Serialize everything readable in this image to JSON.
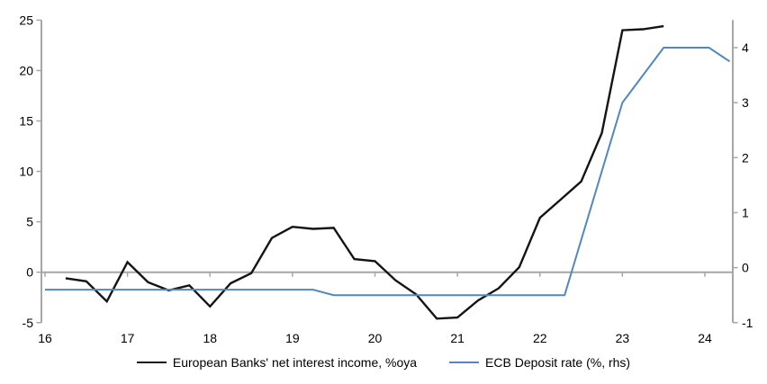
{
  "chart_data": {
    "type": "line",
    "title": "",
    "x_axis": {
      "labels": [
        "16",
        "17",
        "18",
        "19",
        "20",
        "21",
        "22",
        "23",
        "24"
      ],
      "tick_values": [
        16,
        17,
        18,
        19,
        20,
        21,
        22,
        23,
        24
      ],
      "range": [
        15.96,
        24.34
      ],
      "axis_position_left_value": 0
    },
    "y_axis_left": {
      "labels": [
        "25",
        "20",
        "15",
        "10",
        "5",
        "0",
        "-5"
      ],
      "tick_values": [
        25,
        20,
        15,
        10,
        5,
        0,
        -5
      ],
      "range": [
        -5,
        25
      ]
    },
    "y_axis_right": {
      "labels": [
        "4",
        "3",
        "2",
        "1",
        "0",
        "-1"
      ],
      "tick_values": [
        4,
        3,
        2,
        1,
        0,
        -1
      ],
      "range": [
        -1,
        4.5
      ]
    },
    "grid": "off",
    "legend_position": "bottom",
    "series": [
      {
        "name": "European Banks' net interest income, %oya",
        "axis": "left",
        "color": "#141414",
        "stroke_width": 2.4,
        "points": [
          [
            16.25,
            -0.6
          ],
          [
            16.5,
            -0.9
          ],
          [
            16.75,
            -2.9
          ],
          [
            17.0,
            1.0
          ],
          [
            17.25,
            -1.0
          ],
          [
            17.5,
            -1.8
          ],
          [
            17.75,
            -1.3
          ],
          [
            18.0,
            -3.4
          ],
          [
            18.25,
            -1.1
          ],
          [
            18.5,
            -0.1
          ],
          [
            18.75,
            3.4
          ],
          [
            19.0,
            4.5
          ],
          [
            19.25,
            4.3
          ],
          [
            19.5,
            4.4
          ],
          [
            19.75,
            1.3
          ],
          [
            20.0,
            1.1
          ],
          [
            20.25,
            -0.8
          ],
          [
            20.5,
            -2.2
          ],
          [
            20.75,
            -4.6
          ],
          [
            21.0,
            -4.5
          ],
          [
            21.25,
            -2.8
          ],
          [
            21.5,
            -1.6
          ],
          [
            21.75,
            0.5
          ],
          [
            22.0,
            5.4
          ],
          [
            22.25,
            7.2
          ],
          [
            22.5,
            9.0
          ],
          [
            22.75,
            13.8
          ],
          [
            23.0,
            24.0
          ],
          [
            23.25,
            24.1
          ],
          [
            23.5,
            24.4
          ]
        ]
      },
      {
        "name": "ECB Deposit rate (%, rhs)",
        "axis": "right",
        "color": "#5287c1",
        "stroke_width": 2,
        "points": [
          [
            16.0,
            -0.4
          ],
          [
            19.25,
            -0.4
          ],
          [
            19.5,
            -0.5
          ],
          [
            22.3,
            -0.5
          ],
          [
            23.0,
            3.0
          ],
          [
            23.5,
            4.0
          ],
          [
            24.05,
            4.0
          ],
          [
            24.3,
            3.75
          ]
        ]
      }
    ],
    "colors": {
      "axis_line": "#a6a6a6",
      "tick_label_text": "#000000",
      "background": "#ffffff"
    }
  }
}
